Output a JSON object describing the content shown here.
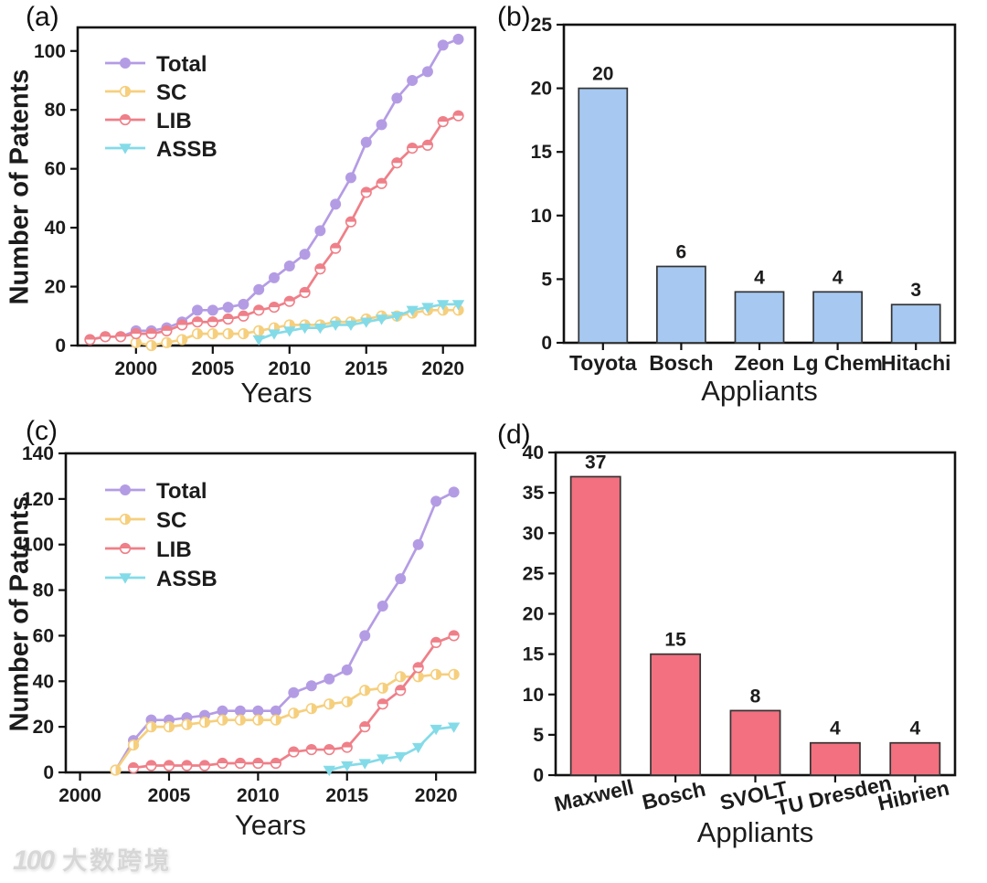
{
  "watermark": {
    "logo": "100",
    "text": "大数跨境"
  },
  "chart_data": [
    {
      "panel_label": "(a)",
      "type": "line",
      "xlabel": "Years",
      "ylabel": "Number of Patents",
      "xlim": [
        1996.2,
        2022.1
      ],
      "ylim": [
        0,
        108
      ],
      "xticks": [
        2000,
        2005,
        2010,
        2015,
        2020
      ],
      "yticks": [
        0,
        20,
        40,
        60,
        80,
        100
      ],
      "plot": {
        "l": 85,
        "r": 520,
        "t": 30,
        "b": 378
      },
      "legend_pos": {
        "x": 115,
        "y": 69,
        "dy": 31
      },
      "series": [
        {
          "name": "Total",
          "color": "#b49ce4",
          "marker": "circle",
          "x": [
            1997,
            1998,
            1999,
            2000,
            2001,
            2002,
            2003,
            2004,
            2005,
            2006,
            2007,
            2008,
            2009,
            2010,
            2011,
            2012,
            2013,
            2014,
            2015,
            2016,
            2017,
            2018,
            2019,
            2020,
            2021
          ],
          "y": [
            2,
            3,
            3,
            5,
            5,
            6,
            8,
            12,
            12,
            13,
            14,
            19,
            23,
            27,
            31,
            39,
            48,
            57,
            69,
            75,
            84,
            90,
            93,
            102,
            104
          ]
        },
        {
          "name": "SC",
          "color": "#f6cf7d",
          "marker": "half-right",
          "x": [
            2000,
            2001,
            2002,
            2003,
            2004,
            2005,
            2006,
            2007,
            2008,
            2009,
            2010,
            2011,
            2012,
            2013,
            2014,
            2015,
            2016,
            2017,
            2018,
            2019,
            2020,
            2021
          ],
          "y": [
            1,
            0,
            1,
            2,
            4,
            4,
            4,
            4,
            5,
            6,
            7,
            7,
            7,
            8,
            8,
            9,
            10,
            10,
            11,
            12,
            12,
            12
          ]
        },
        {
          "name": "LIB",
          "color": "#ef7f88",
          "marker": "half-top",
          "x": [
            1997,
            1998,
            1999,
            2000,
            2001,
            2002,
            2003,
            2004,
            2005,
            2006,
            2007,
            2008,
            2009,
            2010,
            2011,
            2012,
            2013,
            2014,
            2015,
            2016,
            2017,
            2018,
            2019,
            2020,
            2021
          ],
          "y": [
            2,
            3,
            3,
            4,
            4,
            5,
            7,
            8,
            8,
            9,
            10,
            12,
            13,
            15,
            18,
            26,
            33,
            42,
            52,
            55,
            62,
            67,
            68,
            76,
            78
          ]
        },
        {
          "name": "ASSB",
          "color": "#84dbe8",
          "marker": "tri-down",
          "x": [
            2008,
            2009,
            2010,
            2011,
            2012,
            2013,
            2014,
            2015,
            2016,
            2017,
            2018,
            2019,
            2020,
            2021
          ],
          "y": [
            2,
            4,
            5,
            6,
            6,
            7,
            7,
            8,
            9,
            10,
            12,
            13,
            14,
            14
          ]
        }
      ]
    },
    {
      "panel_label": "(b)",
      "type": "bar",
      "xlabel": "Appliants",
      "categories": [
        "Toyota",
        "Bosch",
        "Zeon",
        "Lg Chem",
        "Hitachi"
      ],
      "values": [
        20,
        6,
        4,
        4,
        3
      ],
      "bar_color": "#a6c8f1",
      "bar_edge": "#333333",
      "ylim": [
        0,
        25
      ],
      "yticks": [
        0,
        5,
        10,
        15,
        20,
        25
      ],
      "tick_rotation": 0,
      "plot": {
        "l": 77,
        "r": 505,
        "t": 27,
        "b": 375
      }
    },
    {
      "panel_label": "(c)",
      "type": "line",
      "xlabel": "Years",
      "ylabel": "Number of Patents",
      "xlim": [
        1999.2,
        2022.2
      ],
      "ylim": [
        0,
        140
      ],
      "xticks": [
        2000,
        2005,
        2010,
        2015,
        2020
      ],
      "yticks": [
        0,
        20,
        40,
        60,
        80,
        100,
        120,
        140
      ],
      "plot": {
        "l": 72,
        "r": 520,
        "t": 41,
        "b": 390
      },
      "legend_pos": {
        "x": 115,
        "y": 81,
        "dy": 32
      },
      "series": [
        {
          "name": "Total",
          "color": "#b49ce4",
          "marker": "circle",
          "x": [
            2002,
            2003,
            2004,
            2005,
            2006,
            2007,
            2008,
            2009,
            2010,
            2011,
            2012,
            2013,
            2014,
            2015,
            2016,
            2017,
            2018,
            2019,
            2020,
            2021
          ],
          "y": [
            1,
            14,
            23,
            23,
            24,
            25,
            27,
            27,
            27,
            27,
            35,
            38,
            41,
            45,
            60,
            73,
            85,
            100,
            119,
            123
          ]
        },
        {
          "name": "SC",
          "color": "#f6cf7d",
          "marker": "half-right",
          "x": [
            2002,
            2003,
            2004,
            2005,
            2006,
            2007,
            2008,
            2009,
            2010,
            2011,
            2012,
            2013,
            2014,
            2015,
            2016,
            2017,
            2018,
            2019,
            2020,
            2021
          ],
          "y": [
            1,
            12,
            20,
            20,
            21,
            22,
            23,
            23,
            23,
            23,
            26,
            28,
            30,
            31,
            36,
            37,
            42,
            42,
            43,
            43
          ]
        },
        {
          "name": "LIB",
          "color": "#ef7f88",
          "marker": "half-top",
          "x": [
            2003,
            2004,
            2005,
            2006,
            2007,
            2008,
            2009,
            2010,
            2011,
            2012,
            2013,
            2014,
            2015,
            2016,
            2017,
            2018,
            2019,
            2020,
            2021
          ],
          "y": [
            2,
            3,
            3,
            3,
            3,
            4,
            4,
            4,
            4,
            9,
            10,
            10,
            11,
            20,
            30,
            36,
            46,
            57,
            60
          ]
        },
        {
          "name": "ASSB",
          "color": "#84dbe8",
          "marker": "tri-down",
          "x": [
            2014,
            2015,
            2016,
            2017,
            2018,
            2019,
            2020,
            2021
          ],
          "y": [
            1,
            3,
            4,
            6,
            7,
            11,
            19,
            20
          ]
        }
      ]
    },
    {
      "panel_label": "(d)",
      "type": "bar",
      "xlabel": "Appliants",
      "categories": [
        "Maxwell",
        "Bosch",
        "SVOLT",
        "TU Dresden",
        "Hibrien"
      ],
      "values": [
        37,
        15,
        8,
        4,
        4
      ],
      "bar_color": "#f2707f",
      "bar_edge": "#333333",
      "ylim": [
        0,
        40
      ],
      "yticks": [
        0,
        5,
        10,
        15,
        20,
        25,
        30,
        35,
        40
      ],
      "tick_rotation": -13,
      "plot": {
        "l": 68,
        "r": 505,
        "t": 40,
        "b": 393
      }
    }
  ]
}
